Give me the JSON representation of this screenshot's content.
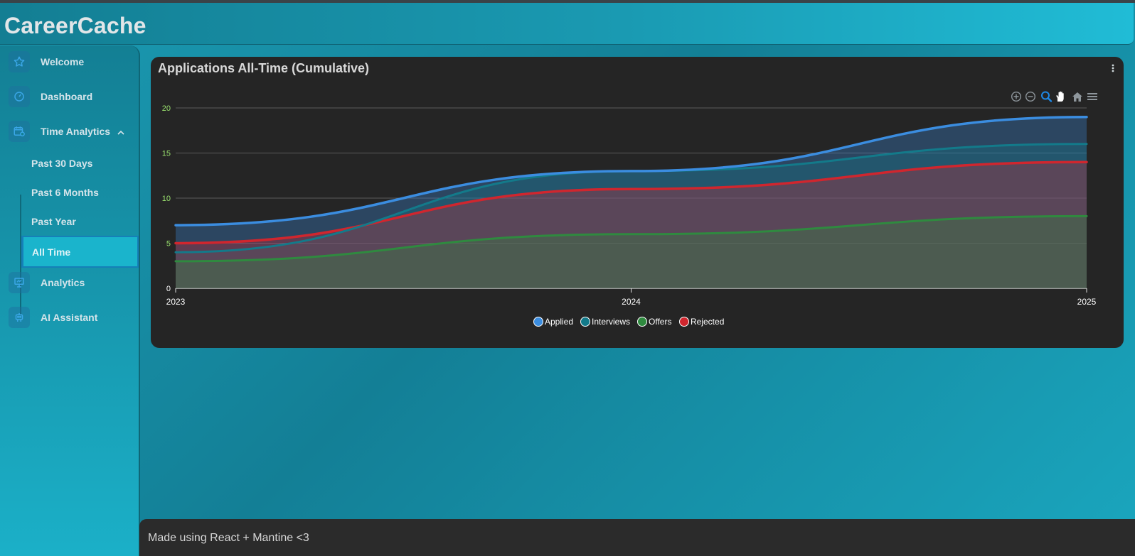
{
  "header": {
    "title": "CareerCache"
  },
  "sidebar": {
    "items": [
      {
        "label": "Welcome",
        "icon": "star-icon"
      },
      {
        "label": "Dashboard",
        "icon": "gauge-icon"
      },
      {
        "label": "Time Analytics",
        "icon": "calendar-clock-icon"
      },
      {
        "label": "Analytics",
        "icon": "presentation-icon"
      },
      {
        "label": "AI Assistant",
        "icon": "robot-icon"
      }
    ],
    "sub_items": [
      {
        "label": "Past 30 Days"
      },
      {
        "label": "Past 6 Months"
      },
      {
        "label": "Past Year"
      },
      {
        "label": "All Time",
        "active": true
      }
    ]
  },
  "card": {
    "title": "Applications All-Time (Cumulative)"
  },
  "footer": {
    "text": "Made using React + Mantine <3"
  },
  "colors": {
    "applied": "#3b8de0",
    "interviews": "#137a8a",
    "offers": "#2f8a3f",
    "rejected": "#d0262e"
  },
  "chart_data": {
    "type": "area",
    "title": "Applications All-Time (Cumulative)",
    "categories": [
      "2023",
      "2024",
      "2025"
    ],
    "ylim": [
      0,
      20
    ],
    "yticks": [
      "0",
      "5",
      "10",
      "15",
      "20"
    ],
    "grid": true,
    "legend_position": "bottom",
    "series": [
      {
        "name": "Applied",
        "values": [
          7,
          13,
          19
        ]
      },
      {
        "name": "Interviews",
        "values": [
          4,
          13,
          16
        ]
      },
      {
        "name": "Offers",
        "values": [
          3,
          6,
          8
        ]
      },
      {
        "name": "Rejected",
        "values": [
          5,
          11,
          14
        ]
      }
    ]
  }
}
